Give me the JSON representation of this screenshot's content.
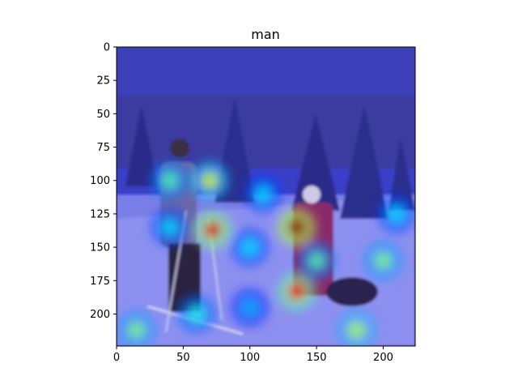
{
  "chart_data": {
    "type": "heatmap",
    "title": "man",
    "xlabel": "",
    "ylabel": "",
    "xlim": [
      0,
      224
    ],
    "ylim": [
      224,
      0
    ],
    "x_ticks": [
      "0",
      "50",
      "100",
      "150",
      "200"
    ],
    "y_ticks": [
      "0",
      "25",
      "50",
      "75",
      "100",
      "125",
      "150",
      "175",
      "200"
    ],
    "colormap": "jet",
    "background": "photo of skiers in a snowy forest (overlaid)",
    "hotspots": [
      {
        "x": 135,
        "y": 135,
        "intensity": 1.0
      },
      {
        "x": 72,
        "y": 137,
        "intensity": 0.9
      },
      {
        "x": 135,
        "y": 183,
        "intensity": 0.85
      },
      {
        "x": 70,
        "y": 100,
        "intensity": 0.6
      },
      {
        "x": 40,
        "y": 100,
        "intensity": 0.45
      },
      {
        "x": 40,
        "y": 135,
        "intensity": 0.35
      },
      {
        "x": 100,
        "y": 150,
        "intensity": 0.35
      },
      {
        "x": 15,
        "y": 212,
        "intensity": 0.5
      },
      {
        "x": 180,
        "y": 212,
        "intensity": 0.55
      },
      {
        "x": 200,
        "y": 160,
        "intensity": 0.5
      },
      {
        "x": 210,
        "y": 125,
        "intensity": 0.35
      },
      {
        "x": 150,
        "y": 160,
        "intensity": 0.45
      },
      {
        "x": 110,
        "y": 110,
        "intensity": 0.35
      },
      {
        "x": 60,
        "y": 200,
        "intensity": 0.4
      },
      {
        "x": 100,
        "y": 195,
        "intensity": 0.3
      }
    ]
  }
}
